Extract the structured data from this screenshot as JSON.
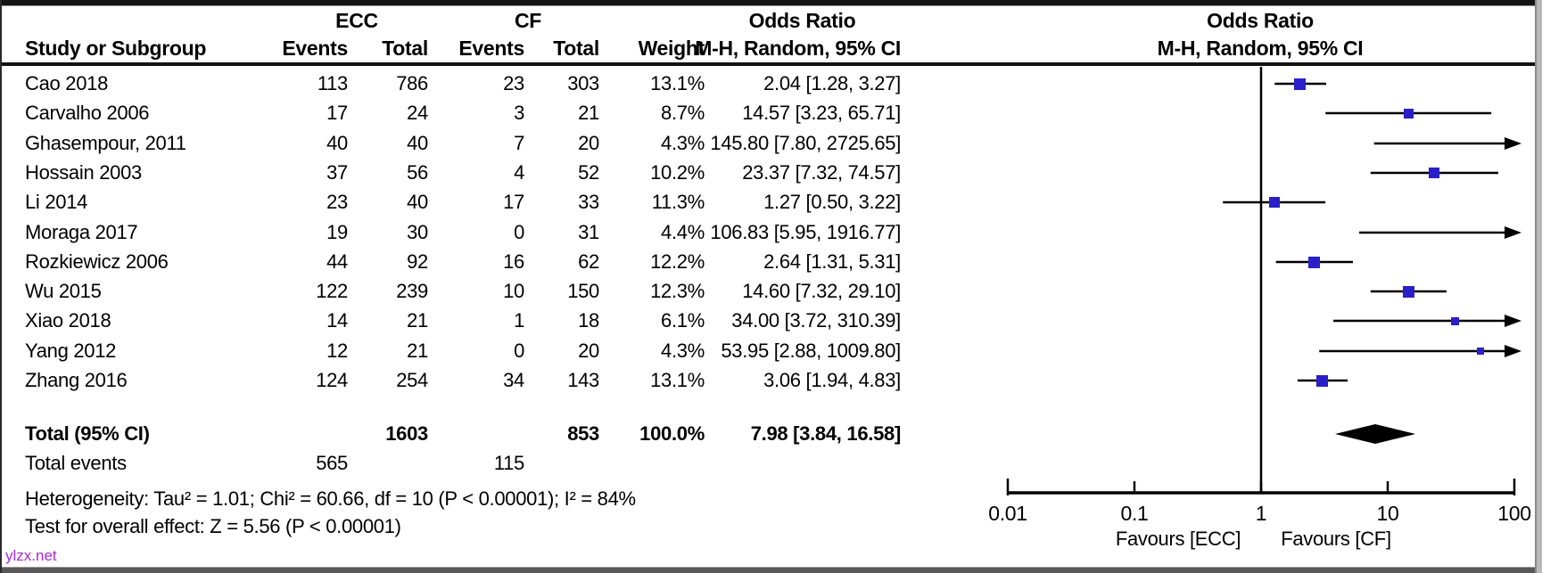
{
  "header": {
    "group1": "ECC",
    "group2": "CF",
    "study_col": "Study or Subgroup",
    "events_col": "Events",
    "total_col": "Total",
    "weight_col": "Weight",
    "or_title_left": "Odds Ratio",
    "or_method_left": "M-H, Random, 95% CI",
    "or_title_right": "Odds Ratio",
    "or_method_right": "M-H, Random, 95% CI"
  },
  "rows": [
    {
      "study": "Cao 2018",
      "e1": "113",
      "n1": "786",
      "e2": "23",
      "n2": "303",
      "weight": "13.1%",
      "ci": "2.04 [1.28, 3.27]"
    },
    {
      "study": "Carvalho 2006",
      "e1": "17",
      "n1": "24",
      "e2": "3",
      "n2": "21",
      "weight": "8.7%",
      "ci": "14.57 [3.23, 65.71]"
    },
    {
      "study": "Ghasempour, 2011",
      "e1": "40",
      "n1": "40",
      "e2": "7",
      "n2": "20",
      "weight": "4.3%",
      "ci": "145.80 [7.80, 2725.65]"
    },
    {
      "study": "Hossain 2003",
      "e1": "37",
      "n1": "56",
      "e2": "4",
      "n2": "52",
      "weight": "10.2%",
      "ci": "23.37 [7.32, 74.57]"
    },
    {
      "study": "Li 2014",
      "e1": "23",
      "n1": "40",
      "e2": "17",
      "n2": "33",
      "weight": "11.3%",
      "ci": "1.27 [0.50, 3.22]"
    },
    {
      "study": "Moraga 2017",
      "e1": "19",
      "n1": "30",
      "e2": "0",
      "n2": "31",
      "weight": "4.4%",
      "ci": "106.83 [5.95, 1916.77]"
    },
    {
      "study": "Rozkiewicz 2006",
      "e1": "44",
      "n1": "92",
      "e2": "16",
      "n2": "62",
      "weight": "12.2%",
      "ci": "2.64 [1.31, 5.31]"
    },
    {
      "study": "Wu 2015",
      "e1": "122",
      "n1": "239",
      "e2": "10",
      "n2": "150",
      "weight": "12.3%",
      "ci": "14.60 [7.32, 29.10]"
    },
    {
      "study": "Xiao 2018",
      "e1": "14",
      "n1": "21",
      "e2": "1",
      "n2": "18",
      "weight": "6.1%",
      "ci": "34.00 [3.72, 310.39]"
    },
    {
      "study": "Yang 2012",
      "e1": "12",
      "n1": "21",
      "e2": "0",
      "n2": "20",
      "weight": "4.3%",
      "ci": "53.95 [2.88, 1009.80]"
    },
    {
      "study": "Zhang 2016",
      "e1": "124",
      "n1": "254",
      "e2": "34",
      "n2": "143",
      "weight": "13.1%",
      "ci": "3.06 [1.94, 4.83]"
    }
  ],
  "total_row": {
    "label": "Total (95% CI)",
    "n1": "1603",
    "n2": "853",
    "weight": "100.0%",
    "ci": "7.98 [3.84, 16.58]"
  },
  "total_events": {
    "label": "Total events",
    "e1": "565",
    "e2": "115"
  },
  "heterogeneity": "Heterogeneity: Tau² = 1.01; Chi² = 60.66, df = 10 (P < 0.00001); I² = 84%",
  "overall_effect": "Test for overall effect: Z = 5.56 (P < 0.00001)",
  "watermark": "ylzx.net",
  "axis": {
    "tick_labels": [
      "0.01",
      "0.1",
      "1",
      "10",
      "100"
    ],
    "favours_left": "Favours [ECC]",
    "favours_right": "Favours [CF]"
  },
  "colors": {
    "square": "#2a1fc8",
    "line": "#000000",
    "diamond": "#000000",
    "watermark": "#a428d8"
  },
  "chart_data": {
    "type": "forest",
    "effect_measure": "Odds Ratio, M-H, Random, 95% CI",
    "x_scale": "log",
    "xlim": [
      0.01,
      100
    ],
    "x_ticks": [
      0.01,
      0.1,
      1,
      10,
      100
    ],
    "null_line": 1,
    "studies": [
      {
        "name": "Cao 2018",
        "or": 2.04,
        "lo": 1.28,
        "hi": 3.27,
        "weight": 13.1
      },
      {
        "name": "Carvalho 2006",
        "or": 14.57,
        "lo": 3.23,
        "hi": 65.71,
        "weight": 8.7
      },
      {
        "name": "Ghasempour, 2011",
        "or": 145.8,
        "lo": 7.8,
        "hi": 2725.65,
        "weight": 4.3
      },
      {
        "name": "Hossain 2003",
        "or": 23.37,
        "lo": 7.32,
        "hi": 74.57,
        "weight": 10.2
      },
      {
        "name": "Li 2014",
        "or": 1.27,
        "lo": 0.5,
        "hi": 3.22,
        "weight": 11.3
      },
      {
        "name": "Moraga 2017",
        "or": 106.83,
        "lo": 5.95,
        "hi": 1916.77,
        "weight": 4.4
      },
      {
        "name": "Rozkiewicz 2006",
        "or": 2.64,
        "lo": 1.31,
        "hi": 5.31,
        "weight": 12.2
      },
      {
        "name": "Wu 2015",
        "or": 14.6,
        "lo": 7.32,
        "hi": 29.1,
        "weight": 12.3
      },
      {
        "name": "Xiao 2018",
        "or": 34.0,
        "lo": 3.72,
        "hi": 310.39,
        "weight": 6.1
      },
      {
        "name": "Yang 2012",
        "or": 53.95,
        "lo": 2.88,
        "hi": 1009.8,
        "weight": 4.3
      },
      {
        "name": "Zhang 2016",
        "or": 3.06,
        "lo": 1.94,
        "hi": 4.83,
        "weight": 13.1
      }
    ],
    "total": {
      "or": 7.98,
      "lo": 3.84,
      "hi": 16.58,
      "weight": 100.0
    },
    "heterogeneity": {
      "tau2": 1.01,
      "chi2": 60.66,
      "df": 10,
      "p": "< 0.00001",
      "i2_pct": 84
    },
    "overall_effect": {
      "z": 5.56,
      "p": "< 0.00001"
    }
  }
}
